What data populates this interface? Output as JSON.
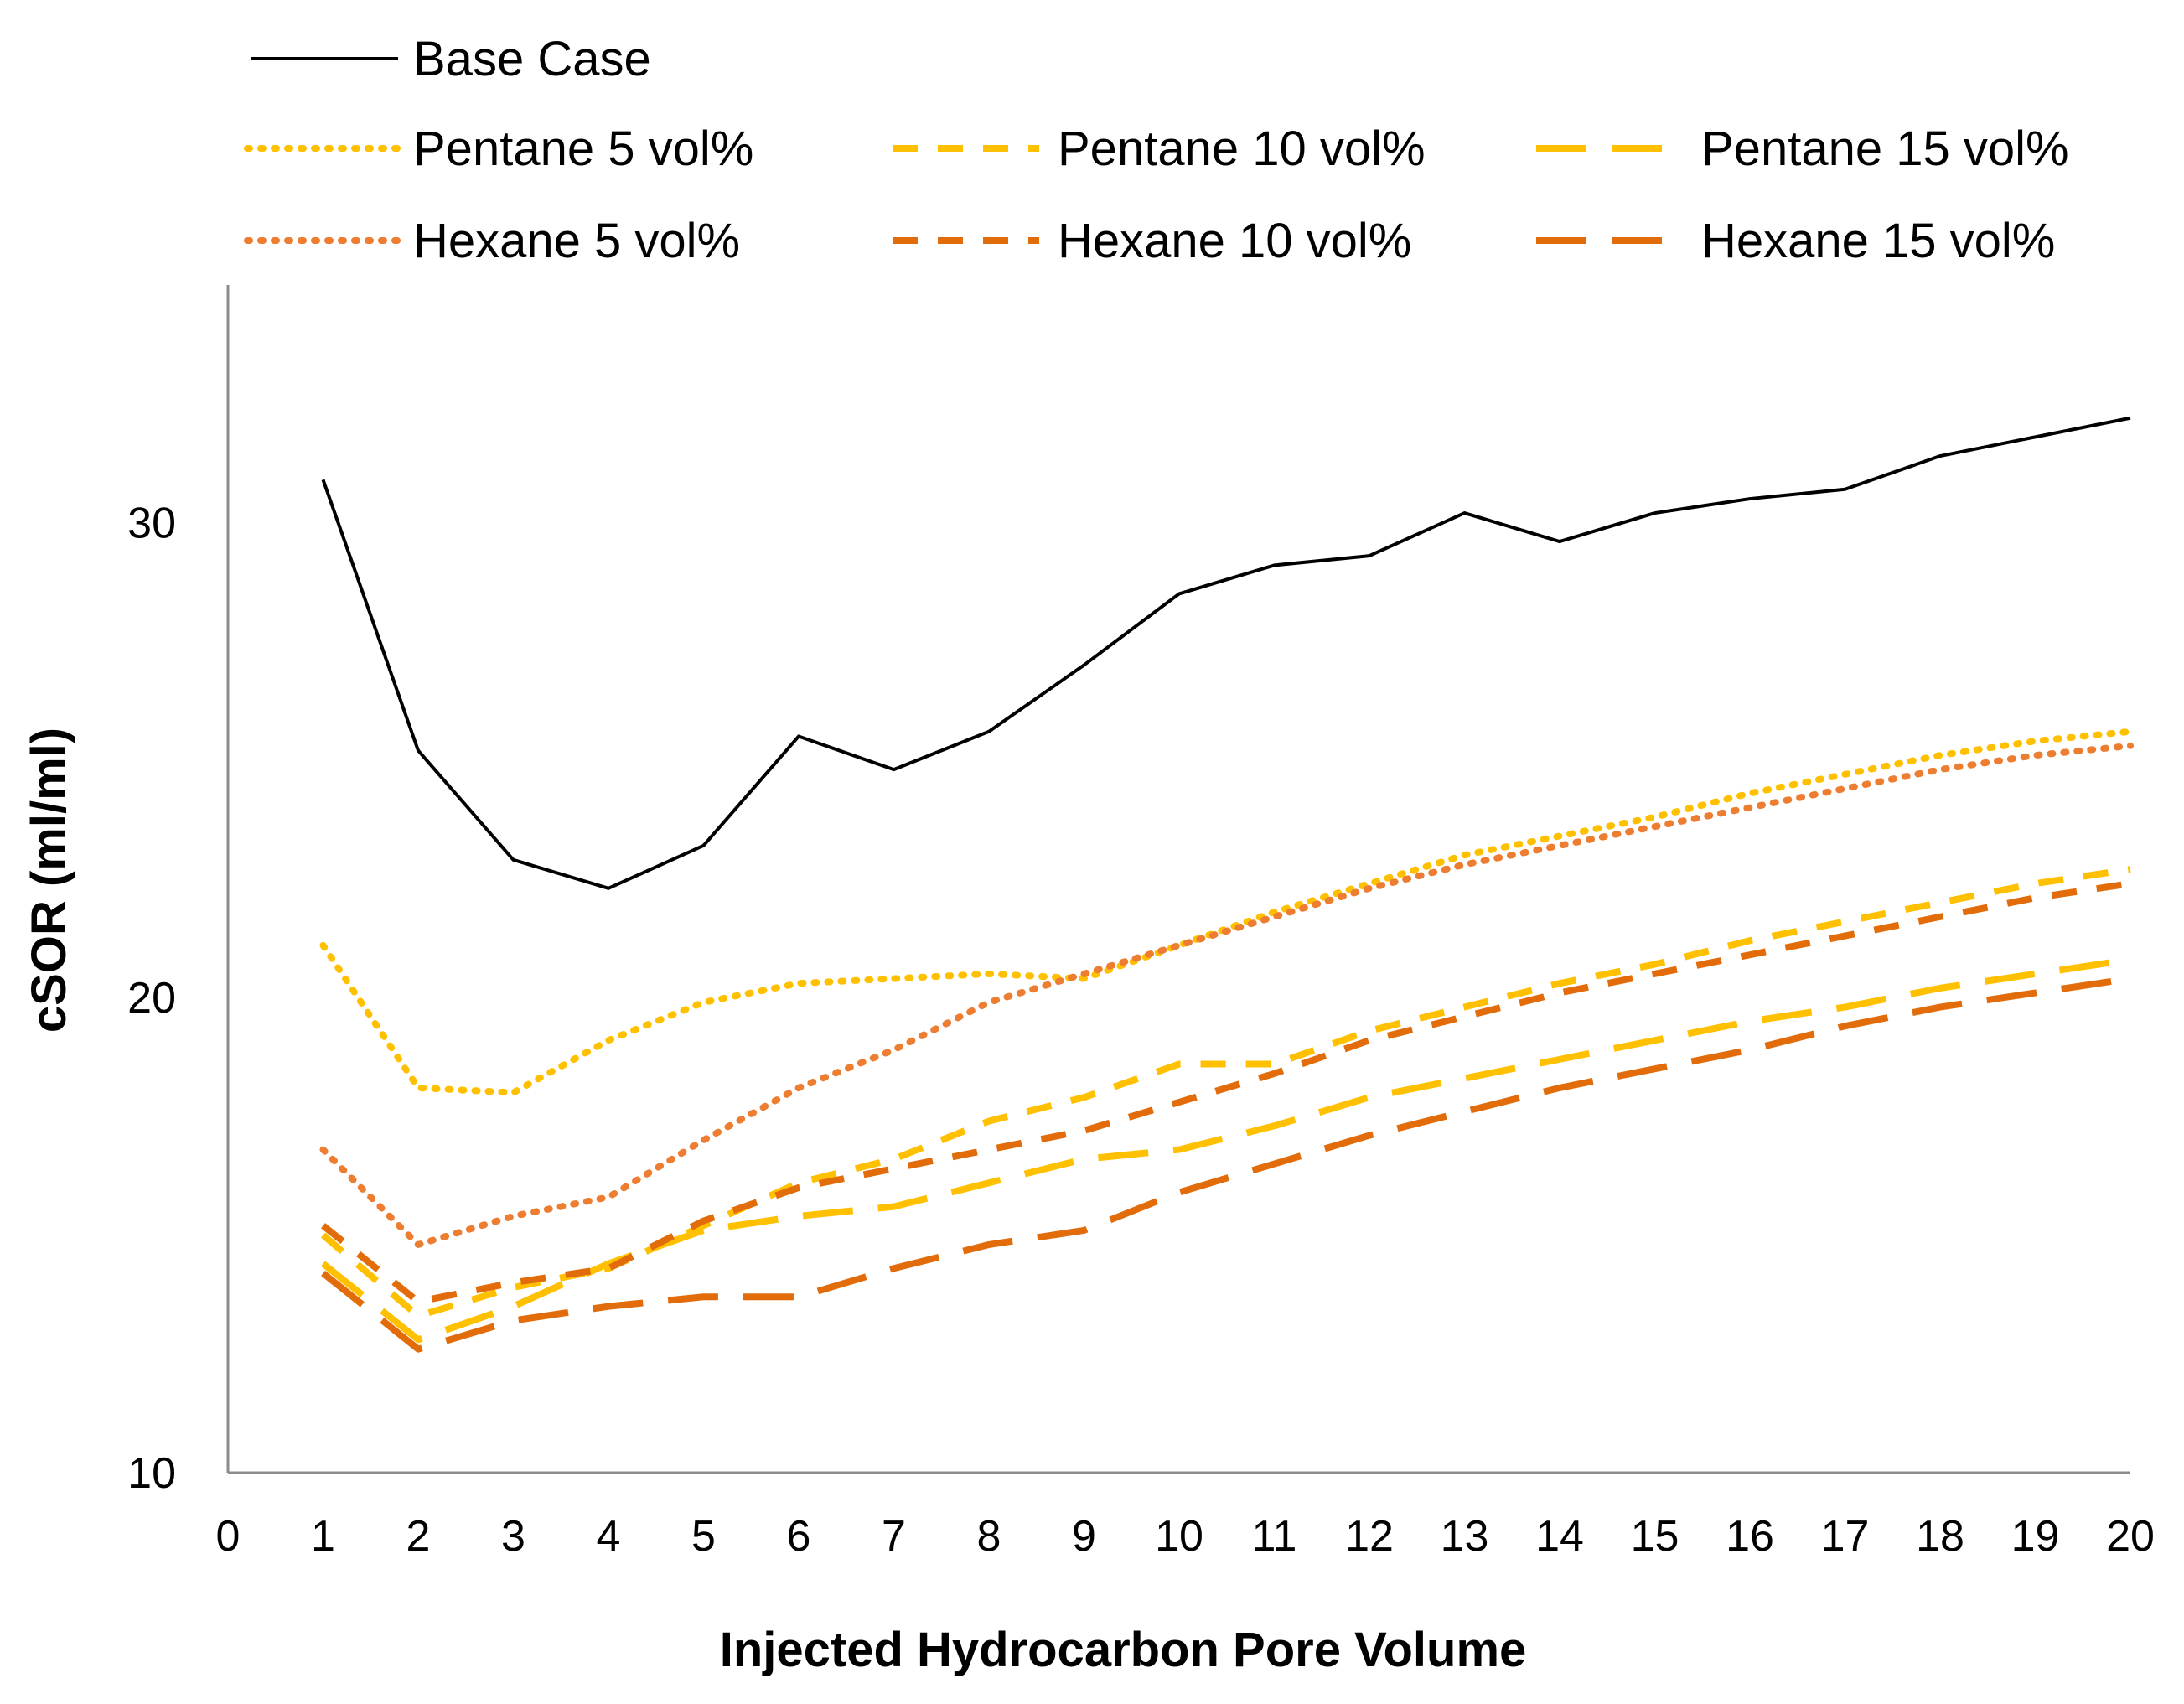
{
  "chart_data": {
    "type": "line",
    "title": "",
    "xlabel": "Injected Hydrocarbon Pore Volume",
    "ylabel": "cSOR (ml/ml)",
    "xlim": [
      0,
      20
    ],
    "ylim": [
      10,
      35
    ],
    "x_ticks": [
      0,
      1,
      2,
      3,
      4,
      5,
      6,
      7,
      8,
      9,
      10,
      11,
      12,
      13,
      14,
      15,
      16,
      17,
      18,
      19,
      20
    ],
    "y_ticks": [
      10,
      20,
      30
    ],
    "grid": false,
    "legend_position": "top",
    "x": [
      1,
      2,
      3,
      4,
      5,
      6,
      7,
      8,
      9,
      10,
      11,
      12,
      13,
      14,
      15,
      16,
      17,
      18,
      19,
      20
    ],
    "series": [
      {
        "name": "Base Case",
        "color": "#000000",
        "style": "solid",
        "values": [
          30.9,
          25.2,
          22.9,
          22.3,
          23.2,
          25.5,
          24.8,
          25.6,
          27.0,
          28.5,
          29.1,
          29.3,
          30.2,
          29.6,
          30.2,
          30.5,
          30.7,
          31.4,
          31.8,
          32.2
        ]
      },
      {
        "name": "Pentane 5 vol%",
        "color": "#FFC000",
        "style": "dotted",
        "values": [
          21.1,
          18.1,
          18.0,
          19.1,
          19.9,
          20.3,
          20.4,
          20.5,
          20.4,
          21.1,
          21.8,
          22.4,
          23.0,
          23.4,
          23.8,
          24.3,
          24.7,
          25.1,
          25.4,
          25.6
        ]
      },
      {
        "name": "Pentane 10 vol%",
        "color": "#FFC000",
        "style": "dashed",
        "values": [
          15.0,
          13.3,
          13.9,
          14.3,
          15.2,
          16.1,
          16.6,
          17.4,
          17.9,
          18.6,
          18.6,
          19.3,
          19.8,
          20.3,
          20.7,
          21.2,
          21.6,
          22.0,
          22.4,
          22.7
        ]
      },
      {
        "name": "Pentane 15 vol%",
        "color": "#FFC000",
        "style": "longdash",
        "values": [
          14.4,
          12.8,
          13.5,
          14.4,
          15.1,
          15.4,
          15.6,
          16.1,
          16.6,
          16.8,
          17.3,
          17.9,
          18.3,
          18.7,
          19.1,
          19.5,
          19.8,
          20.2,
          20.5,
          20.8
        ]
      },
      {
        "name": "Hexane 5 vol%",
        "color": "#ED7D31",
        "style": "dotted",
        "values": [
          16.8,
          14.8,
          15.4,
          15.8,
          17.0,
          18.1,
          18.9,
          19.9,
          20.5,
          21.1,
          21.7,
          22.3,
          22.8,
          23.2,
          23.6,
          24.0,
          24.4,
          24.8,
          25.1,
          25.3
        ]
      },
      {
        "name": "Hexane 10 vol%",
        "color": "#E36C0A",
        "style": "dashed",
        "values": [
          15.2,
          13.6,
          14.0,
          14.3,
          15.3,
          16.0,
          16.4,
          16.8,
          17.2,
          17.8,
          18.4,
          19.1,
          19.6,
          20.1,
          20.5,
          20.9,
          21.3,
          21.7,
          22.1,
          22.4
        ]
      },
      {
        "name": "Hexane 15 vol%",
        "color": "#E36C0A",
        "style": "longdash",
        "values": [
          14.2,
          12.6,
          13.2,
          13.5,
          13.7,
          13.7,
          14.3,
          14.8,
          15.1,
          15.9,
          16.5,
          17.1,
          17.6,
          18.1,
          18.5,
          18.9,
          19.4,
          19.8,
          20.1,
          20.4
        ]
      }
    ]
  }
}
